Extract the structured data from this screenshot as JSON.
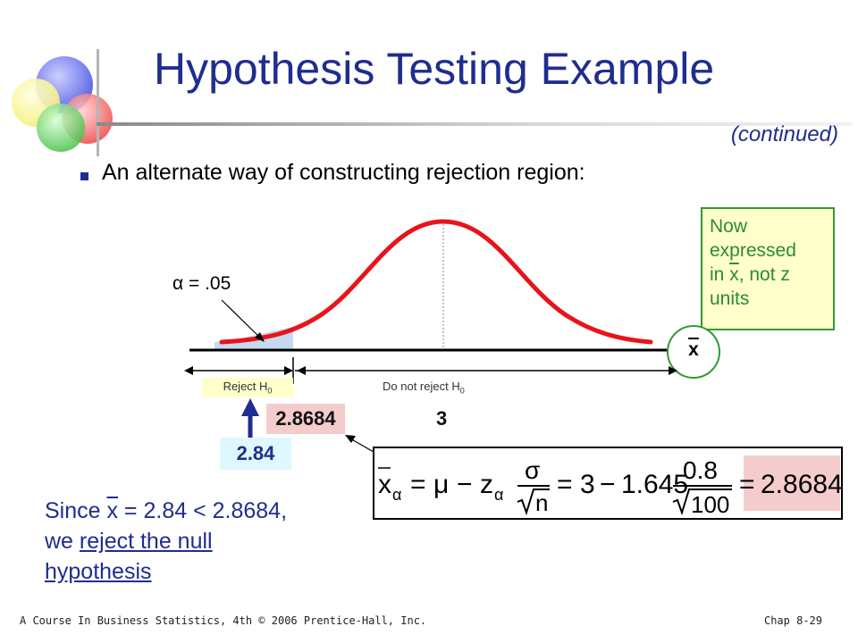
{
  "slide": {
    "title": "Hypothesis Testing Example",
    "continued": "(continued)",
    "bullet": "An alternate way of constructing rejection region:"
  },
  "note_box": {
    "line1": "Now",
    "line2": "expressed",
    "line3_pre": "in ",
    "line3_var": "x",
    "line3_post": ", not z",
    "line4": "units"
  },
  "chart": {
    "alpha_label": "α = .05",
    "axis_variable": "x",
    "reject_label": "Reject H",
    "do_not_reject_label": "Do not reject H",
    "h_subscript": "0",
    "critical_value": "2.8684",
    "mean_value": "3",
    "observed_value": "2.84"
  },
  "formula": {
    "lhs_var": "x",
    "lhs_sub": "α",
    "eq1": "=",
    "mu": "μ",
    "minus1": "−",
    "z": "z",
    "z_sub": "α",
    "sigma": "σ",
    "n": "n",
    "eq2": "=",
    "mean": "3",
    "minus2": "−",
    "zval": "1.645",
    "num": "0.8",
    "den": "100",
    "eq3": "=",
    "result": "2.8684"
  },
  "conclusion": {
    "since": "Since ",
    "xbar": "x",
    "rest": " = 2.84 < 2.8684,",
    "we": "we ",
    "reject1": "reject the null",
    "reject2": "hypothesis"
  },
  "footer": {
    "left": "A Course In Business Statistics, 4th © 2006 Prentice-Hall, Inc.",
    "right": "Chap 8-29"
  },
  "colors": {
    "title": "#1f2d8f",
    "curve": "#e8141b",
    "reject_shade": "#c5d9f1",
    "note_border": "#339933",
    "note_bg": "#ffffcc"
  },
  "icons": [
    "circles-logo-icon",
    "bullet-square-icon",
    "arrow-up-icon"
  ]
}
